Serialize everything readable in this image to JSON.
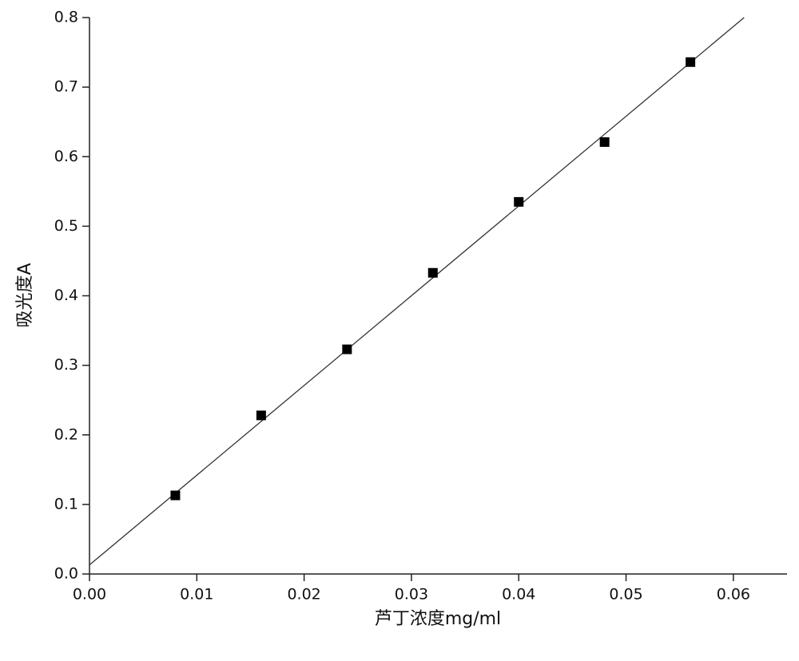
{
  "chart_data": {
    "type": "scatter",
    "x_label": "芦丁浓度mg/ml",
    "y_label": "吸光度A",
    "x": [
      0.008,
      0.016,
      0.024,
      0.032,
      0.04,
      0.048,
      0.056
    ],
    "values": [
      0.113,
      0.228,
      0.323,
      0.433,
      0.535,
      0.621,
      0.736
    ],
    "color": "#000000",
    "fit": {
      "type": "line",
      "x": [
        0,
        0.061
      ],
      "values": [
        0.013,
        0.8
      ],
      "color": "#333333"
    },
    "xlim": [
      0,
      0.065
    ],
    "ylim": [
      0,
      0.8
    ],
    "xticks": [
      {
        "value": 0,
        "label": "0.00"
      },
      {
        "value": 0.01,
        "label": "0.01"
      },
      {
        "value": 0.02,
        "label": "0.02"
      },
      {
        "value": 0.03,
        "label": "0.03"
      },
      {
        "value": 0.04,
        "label": "0.04"
      },
      {
        "value": 0.05,
        "label": "0.05"
      },
      {
        "value": 0.06,
        "label": "0.06"
      }
    ],
    "yticks": [
      {
        "value": 0,
        "label": "0.0"
      },
      0.1,
      0.2,
      0.3,
      0.4,
      0.5,
      0.6,
      0.7,
      0.8
    ],
    "grid": false
  }
}
